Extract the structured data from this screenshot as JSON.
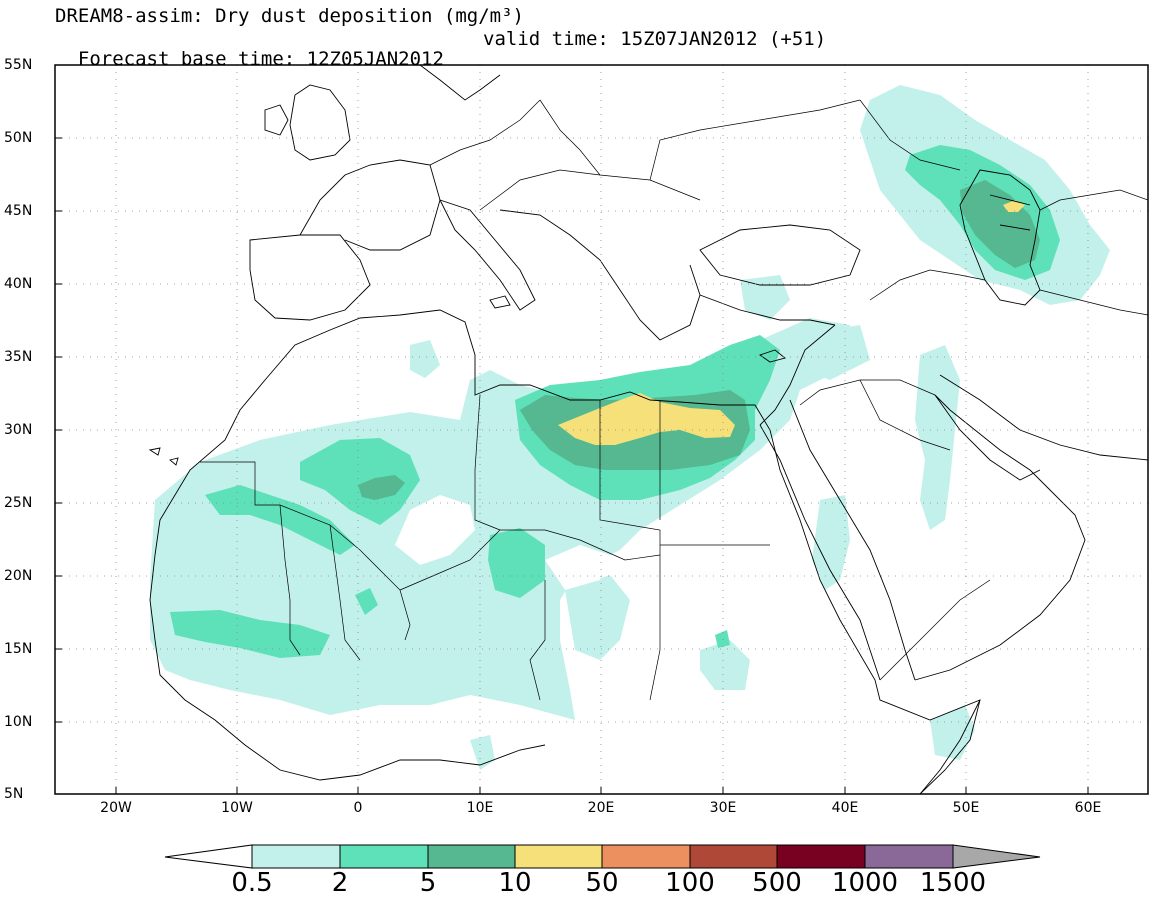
{
  "header": {
    "line1": "DREAM8-assim: Dry dust deposition (mg/m³)",
    "line2_left": "Forecast base time: 12Z05JAN2012",
    "line2_right": "valid time: 15Z07JAN2012 (+51)"
  },
  "map": {
    "lat_labels": [
      "55N",
      "50N",
      "45N",
      "40N",
      "35N",
      "30N",
      "25N",
      "20N",
      "15N",
      "10N",
      "5N"
    ],
    "lon_labels": [
      "20W",
      "10W",
      "0",
      "10E",
      "20E",
      "30E",
      "40E",
      "50E",
      "60E"
    ]
  },
  "colorbar": {
    "labels": [
      "0.5",
      "2",
      "5",
      "10",
      "50",
      "100",
      "500",
      "1000",
      "1500"
    ],
    "colors": [
      "#c2f0ea",
      "#5ee0b8",
      "#55b890",
      "#f5e07a",
      "#ec9060",
      "#b04838",
      "#780020",
      "#8a6898",
      "#a8a8a8"
    ]
  }
}
